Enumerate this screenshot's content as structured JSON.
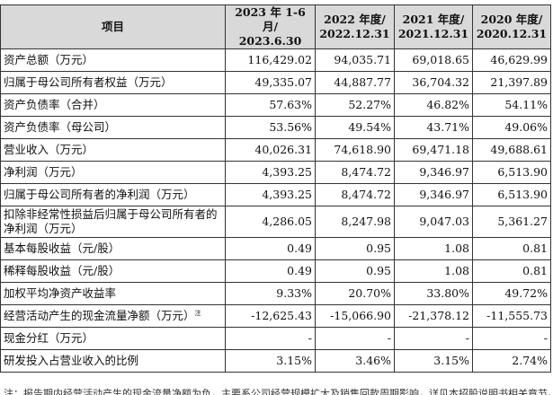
{
  "table": {
    "headers": {
      "item": "项目",
      "c1_line1": "2023 年 1-6 月/",
      "c1_line2": "2023.6.30",
      "c2_line1": "2022 年度/",
      "c2_line2": "2022.12.31",
      "c3_line1": "2021 年度/",
      "c3_line2": "2021.12.31",
      "c4_line1": "2020 年度/",
      "c4_line2": "2020.12.31"
    },
    "rows": [
      {
        "label": "资产总额（万元）",
        "values": [
          "116,429.02",
          "94,035.71",
          "69,018.65",
          "46,629.99"
        ]
      },
      {
        "label": "归属于母公司所有者权益（万元）",
        "values": [
          "49,335.07",
          "44,887.77",
          "36,704.32",
          "21,397.89"
        ]
      },
      {
        "label": "资产负债率（合并）",
        "values": [
          "57.63%",
          "52.27%",
          "46.82%",
          "54.11%"
        ]
      },
      {
        "label": "资产负债率（母公司）",
        "values": [
          "53.56%",
          "49.54%",
          "43.71%",
          "49.06%"
        ]
      },
      {
        "label": "营业收入（万元）",
        "values": [
          "40,026.31",
          "74,618.90",
          "69,471.18",
          "49,688.61"
        ]
      },
      {
        "label": "净利润（万元）",
        "values": [
          "4,393.25",
          "8,474.72",
          "9,346.97",
          "6,513.90"
        ]
      },
      {
        "label": "归属于母公司所有者的净利润（万元）",
        "values": [
          "4,393.25",
          "8,474.72",
          "9,346.97",
          "6,513.90"
        ]
      },
      {
        "label": "扣除非经常性损益后归属于母公司所有者的净利润（万元）",
        "values": [
          "4,286.05",
          "8,247.98",
          "9,047.03",
          "5,361.27"
        ]
      },
      {
        "label": "基本每股收益（元/股）",
        "values": [
          "0.49",
          "0.95",
          "1.08",
          "0.81"
        ]
      },
      {
        "label": "稀释每股收益（元/股）",
        "values": [
          "0.49",
          "0.95",
          "1.08",
          "0.81"
        ]
      },
      {
        "label": "加权平均净资产收益率",
        "values": [
          "9.33%",
          "20.70%",
          "33.80%",
          "49.72%"
        ]
      },
      {
        "label": "经营活动产生的现金流量净额（万元）",
        "note": "注",
        "values": [
          "-12,625.43",
          "-15,066.90",
          "-21,378.12",
          "-11,555.73"
        ]
      },
      {
        "label": "现金分红（万元）",
        "values": [
          "-",
          "-",
          "-",
          "-"
        ]
      },
      {
        "label": "研发投入占营业收入的比例",
        "values": [
          "3.15%",
          "3.46%",
          "3.15%",
          "2.74%"
        ]
      }
    ]
  },
  "footnote": "注：报告期内经营活动产生的现金流量净额为负，主要系公司经营规模扩大及销售回款周期影响，详见本招股说明书相关章节。"
}
